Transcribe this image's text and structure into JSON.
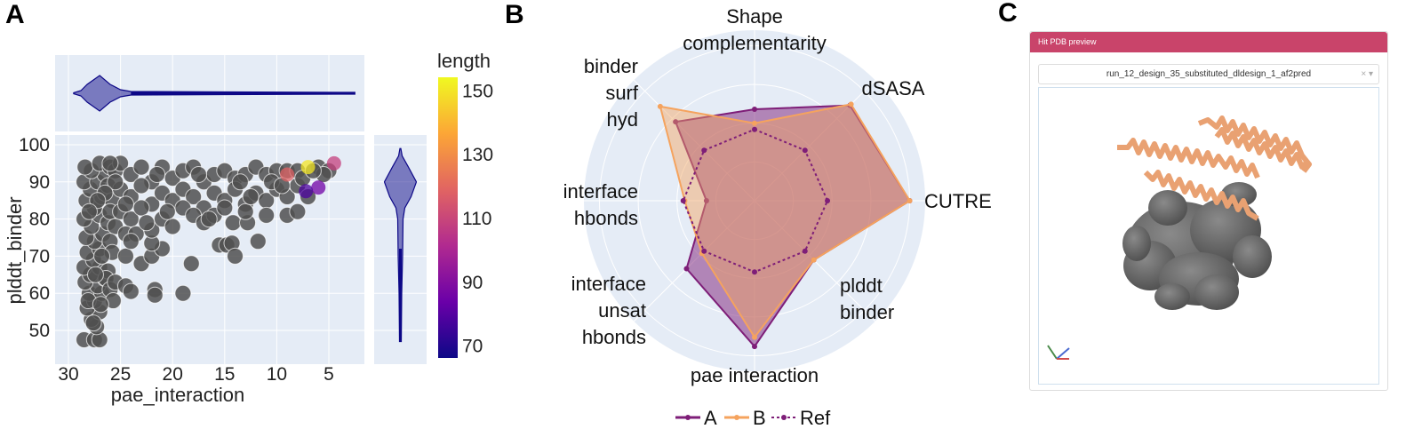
{
  "panels": {
    "a": "A",
    "b": "B",
    "c": "C"
  },
  "chart_data": [
    {
      "type": "scatter",
      "xlabel": "pae_interaction",
      "ylabel": "plddt_binder",
      "xlim": [
        31.3,
        0.5
      ],
      "ylim": [
        42.5,
        102.5
      ],
      "xticks": [
        30,
        25,
        20,
        15,
        10,
        5
      ],
      "yticks": [
        100,
        90,
        80,
        70,
        60,
        50
      ],
      "grid": true,
      "gray_points": [
        [
          28.5,
          47.5
        ],
        [
          27.5,
          47.5
        ],
        [
          27,
          47.5
        ],
        [
          27.3,
          51
        ],
        [
          27.8,
          53
        ],
        [
          27,
          55
        ],
        [
          28.2,
          56
        ],
        [
          27.5,
          58
        ],
        [
          28,
          60
        ],
        [
          26.8,
          60
        ],
        [
          27.2,
          62
        ],
        [
          28.4,
          63
        ],
        [
          26.5,
          64
        ],
        [
          27.9,
          65
        ],
        [
          28.5,
          67
        ],
        [
          27,
          67
        ],
        [
          26.2,
          66
        ],
        [
          27.6,
          69
        ],
        [
          28.2,
          71
        ],
        [
          27,
          72
        ],
        [
          27.5,
          74
        ],
        [
          28.3,
          75
        ],
        [
          26.7,
          76
        ],
        [
          27.8,
          78
        ],
        [
          28.5,
          80
        ],
        [
          27,
          81
        ],
        [
          26.2,
          79
        ],
        [
          27.5,
          83
        ],
        [
          28.3,
          85
        ],
        [
          26.8,
          86
        ],
        [
          27.9,
          88
        ],
        [
          28.5,
          90
        ],
        [
          27.2,
          90
        ],
        [
          26.5,
          92
        ],
        [
          27.8,
          93
        ],
        [
          28.4,
          94
        ],
        [
          27,
          95
        ],
        [
          26,
          94
        ],
        [
          25.5,
          93
        ],
        [
          26.2,
          89
        ],
        [
          25.8,
          85
        ],
        [
          26,
          82
        ],
        [
          25.5,
          78
        ],
        [
          26,
          74
        ],
        [
          25.8,
          71
        ],
        [
          26.4,
          64
        ],
        [
          26,
          61
        ],
        [
          25.7,
          58
        ],
        [
          25.5,
          63
        ],
        [
          24.5,
          62
        ],
        [
          24,
          60.5
        ],
        [
          24.5,
          70
        ],
        [
          23,
          68
        ],
        [
          22,
          70
        ],
        [
          21.7,
          61
        ],
        [
          21.7,
          59.5
        ],
        [
          21,
          72
        ],
        [
          22,
          73.5
        ],
        [
          19,
          60
        ],
        [
          18.2,
          68
        ],
        [
          15.5,
          73
        ],
        [
          14.8,
          73
        ],
        [
          14.3,
          73.5
        ],
        [
          14,
          70
        ],
        [
          14.2,
          79
        ],
        [
          12.8,
          79
        ],
        [
          11.8,
          74
        ],
        [
          25,
          95
        ],
        [
          24,
          92
        ],
        [
          23,
          94
        ],
        [
          22,
          90
        ],
        [
          21,
          94
        ],
        [
          20,
          91
        ],
        [
          19,
          93
        ],
        [
          18,
          94
        ],
        [
          17,
          90
        ],
        [
          16,
          92
        ],
        [
          15,
          93
        ],
        [
          14,
          91
        ],
        [
          13,
          92
        ],
        [
          12,
          94
        ],
        [
          11,
          92
        ],
        [
          10,
          93
        ],
        [
          9,
          93
        ],
        [
          8,
          93
        ],
        [
          6,
          94
        ],
        [
          5,
          93
        ],
        [
          5.5,
          92
        ],
        [
          25,
          88
        ],
        [
          24,
          86
        ],
        [
          23,
          89
        ],
        [
          22,
          84
        ],
        [
          21,
          87
        ],
        [
          20,
          85
        ],
        [
          19,
          88
        ],
        [
          18,
          86
        ],
        [
          17,
          83
        ],
        [
          16,
          87
        ],
        [
          15,
          85
        ],
        [
          14,
          88
        ],
        [
          13,
          84
        ],
        [
          12,
          87
        ],
        [
          11,
          85
        ],
        [
          10,
          88
        ],
        [
          9,
          86
        ],
        [
          8,
          89
        ],
        [
          7,
          86
        ],
        [
          25,
          82
        ],
        [
          24,
          80
        ],
        [
          23,
          83
        ],
        [
          22,
          77
        ],
        [
          21,
          80
        ],
        [
          20,
          78
        ],
        [
          19,
          83
        ],
        [
          18,
          81
        ],
        [
          17,
          79
        ],
        [
          16,
          81
        ],
        [
          15,
          83
        ],
        [
          13,
          82
        ],
        [
          11,
          81
        ],
        [
          9,
          81
        ],
        [
          8,
          82
        ],
        [
          24.5,
          76
        ],
        [
          23.5,
          76
        ],
        [
          24,
          74
        ],
        [
          22.5,
          79
        ],
        [
          20.5,
          82
        ],
        [
          16.5,
          80
        ],
        [
          12.5,
          86
        ],
        [
          10.5,
          90
        ],
        [
          7.5,
          91
        ],
        [
          6.5,
          93
        ],
        [
          9.5,
          89
        ],
        [
          13.5,
          90
        ],
        [
          17.5,
          92
        ],
        [
          21.5,
          92
        ],
        [
          25.5,
          90
        ],
        [
          24.5,
          84
        ],
        [
          26.5,
          87
        ],
        [
          26,
          95
        ],
        [
          27.2,
          85
        ],
        [
          28,
          82
        ],
        [
          26.8,
          70
        ],
        [
          27.4,
          65
        ],
        [
          28.1,
          58
        ],
        [
          26.9,
          57
        ],
        [
          27.6,
          52
        ]
      ],
      "highlighted_points": [
        {
          "x": 9.0,
          "y": 92,
          "length": 118
        },
        {
          "x": 7.0,
          "y": 94,
          "length": 150
        },
        {
          "x": 4.5,
          "y": 95,
          "length": 108
        },
        {
          "x": 6.0,
          "y": 88.5,
          "length": 85
        },
        {
          "x": 7.2,
          "y": 87.5,
          "length": 78
        }
      ]
    },
    {
      "type": "violin",
      "variable": "pae_interaction",
      "orientation": "horizontal",
      "mode": "peak",
      "peak": 27,
      "range": [
        2.5,
        29.5
      ],
      "color": "#0d0887"
    },
    {
      "type": "violin",
      "variable": "plddt_binder",
      "orientation": "vertical",
      "mode": "peak",
      "peak": 90,
      "range": [
        47,
        99
      ],
      "color": "#0d0887"
    },
    {
      "type": "colorbar",
      "title": "length",
      "ticks": [
        150,
        130,
        110,
        90,
        70
      ],
      "range": [
        66,
        154
      ],
      "colorscale": [
        "#0d0887",
        "#6a00a8",
        "#b12a90",
        "#e16462",
        "#fca636",
        "#f0f921"
      ]
    },
    {
      "type": "radar",
      "radial_range": [
        0,
        1.1
      ],
      "axes": [
        {
          "label_lines": [
            "Shape",
            "complementarity"
          ]
        },
        {
          "label_lines": [
            "dSASA"
          ]
        },
        {
          "label_lines": [
            "CUTRE"
          ]
        },
        {
          "label_lines": [
            "plddt",
            "binder"
          ]
        },
        {
          "label_lines": [
            "pae interaction"
          ]
        },
        {
          "label_lines": [
            "interface",
            "unsat",
            "hbonds"
          ]
        },
        {
          "label_lines": [
            "interface",
            "hbonds"
          ]
        },
        {
          "label_lines": [
            "binder",
            "surf",
            "hyd"
          ]
        }
      ],
      "series": [
        {
          "name": "A",
          "values": [
            0.59,
            0.87,
            1.0,
            0.54,
            0.94,
            0.62,
            0.31,
            0.72
          ],
          "color": "#7e1e78",
          "dash": false
        },
        {
          "name": "B",
          "values": [
            0.5,
            0.88,
            1.0,
            0.54,
            0.88,
            0.48,
            0.45,
            0.86
          ],
          "color": "#f5a35e",
          "dash": false
        },
        {
          "name": "Ref",
          "values": [
            0.46,
            0.46,
            0.47,
            0.46,
            0.46,
            0.46,
            0.46,
            0.46
          ],
          "color": "#7e1e78",
          "dash": true
        }
      ],
      "legend_position": "bottom"
    }
  ],
  "preview": {
    "header": "Hit PDB preview",
    "selected": "run_12_design_35_substituted_dldesign_1_af2pred",
    "clear_icon": "×",
    "dropdown_icon": "▾",
    "header_color": "#c9446a"
  }
}
